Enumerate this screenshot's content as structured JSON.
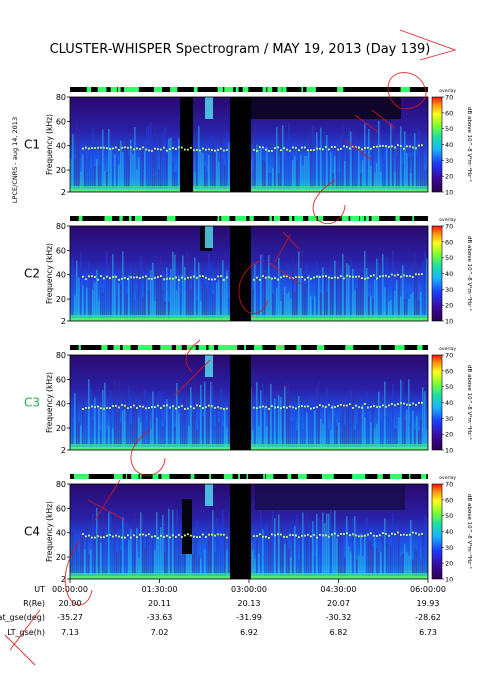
{
  "title": "CLUSTER-WHISPER Spectrogram / MAY 19, 2013 (Day 139)",
  "side_label": "LPCE/CNRS - aug 14, 2013",
  "chart_data": {
    "type": "heatmap",
    "title": "CLUSTER-WHISPER Spectrogram / MAY 19, 2013 (Day 139)",
    "ylabel": "Frequency (kHz)",
    "ylim": [
      2,
      80
    ],
    "yticks": [
      "80",
      "60",
      "40",
      "20",
      "2"
    ],
    "xlim": [
      "00:00:00",
      "06:00:00"
    ],
    "overlay_label": "overlay",
    "colorbar": {
      "label": "dB above 10^-8 V²m⁻²Hz⁻¹",
      "range": [
        10,
        70
      ],
      "ticks": [
        "70",
        "60",
        "50",
        "40",
        "30",
        "20",
        "10"
      ]
    },
    "panels": [
      {
        "name": "C1",
        "color": "#000000"
      },
      {
        "name": "C2",
        "color": "#000000"
      },
      {
        "name": "C3",
        "color": "#22b14c"
      },
      {
        "name": "C4",
        "color": "#000000"
      }
    ],
    "ephemeris": {
      "rows": [
        {
          "label": "UT",
          "values": [
            "00:00:00",
            "01:30:00",
            "03:00:00",
            "04:30:00",
            "06:00:00"
          ]
        },
        {
          "label": "R(Re)",
          "values": [
            "20.00",
            "20.11",
            "20.13",
            "20.07",
            "19.93"
          ]
        },
        {
          "label": "Lat_gse(deg)",
          "values": [
            "-35.27",
            "-33.63",
            "-31.99",
            "-30.32",
            "-28.62"
          ]
        },
        {
          "label": "LT_gse(h)",
          "values": [
            "7.13",
            "7.02",
            "6.92",
            "6.82",
            "6.73"
          ]
        }
      ]
    },
    "plasma_line_khz": 38
  },
  "colors": {
    "background": "#ffffff",
    "spectrum_low": "#2a0a6e",
    "spectrum_mid": "#1e50e6",
    "spectrum_high": "#28d7b4",
    "gap": "#000000",
    "annotation": "#dc1414"
  }
}
